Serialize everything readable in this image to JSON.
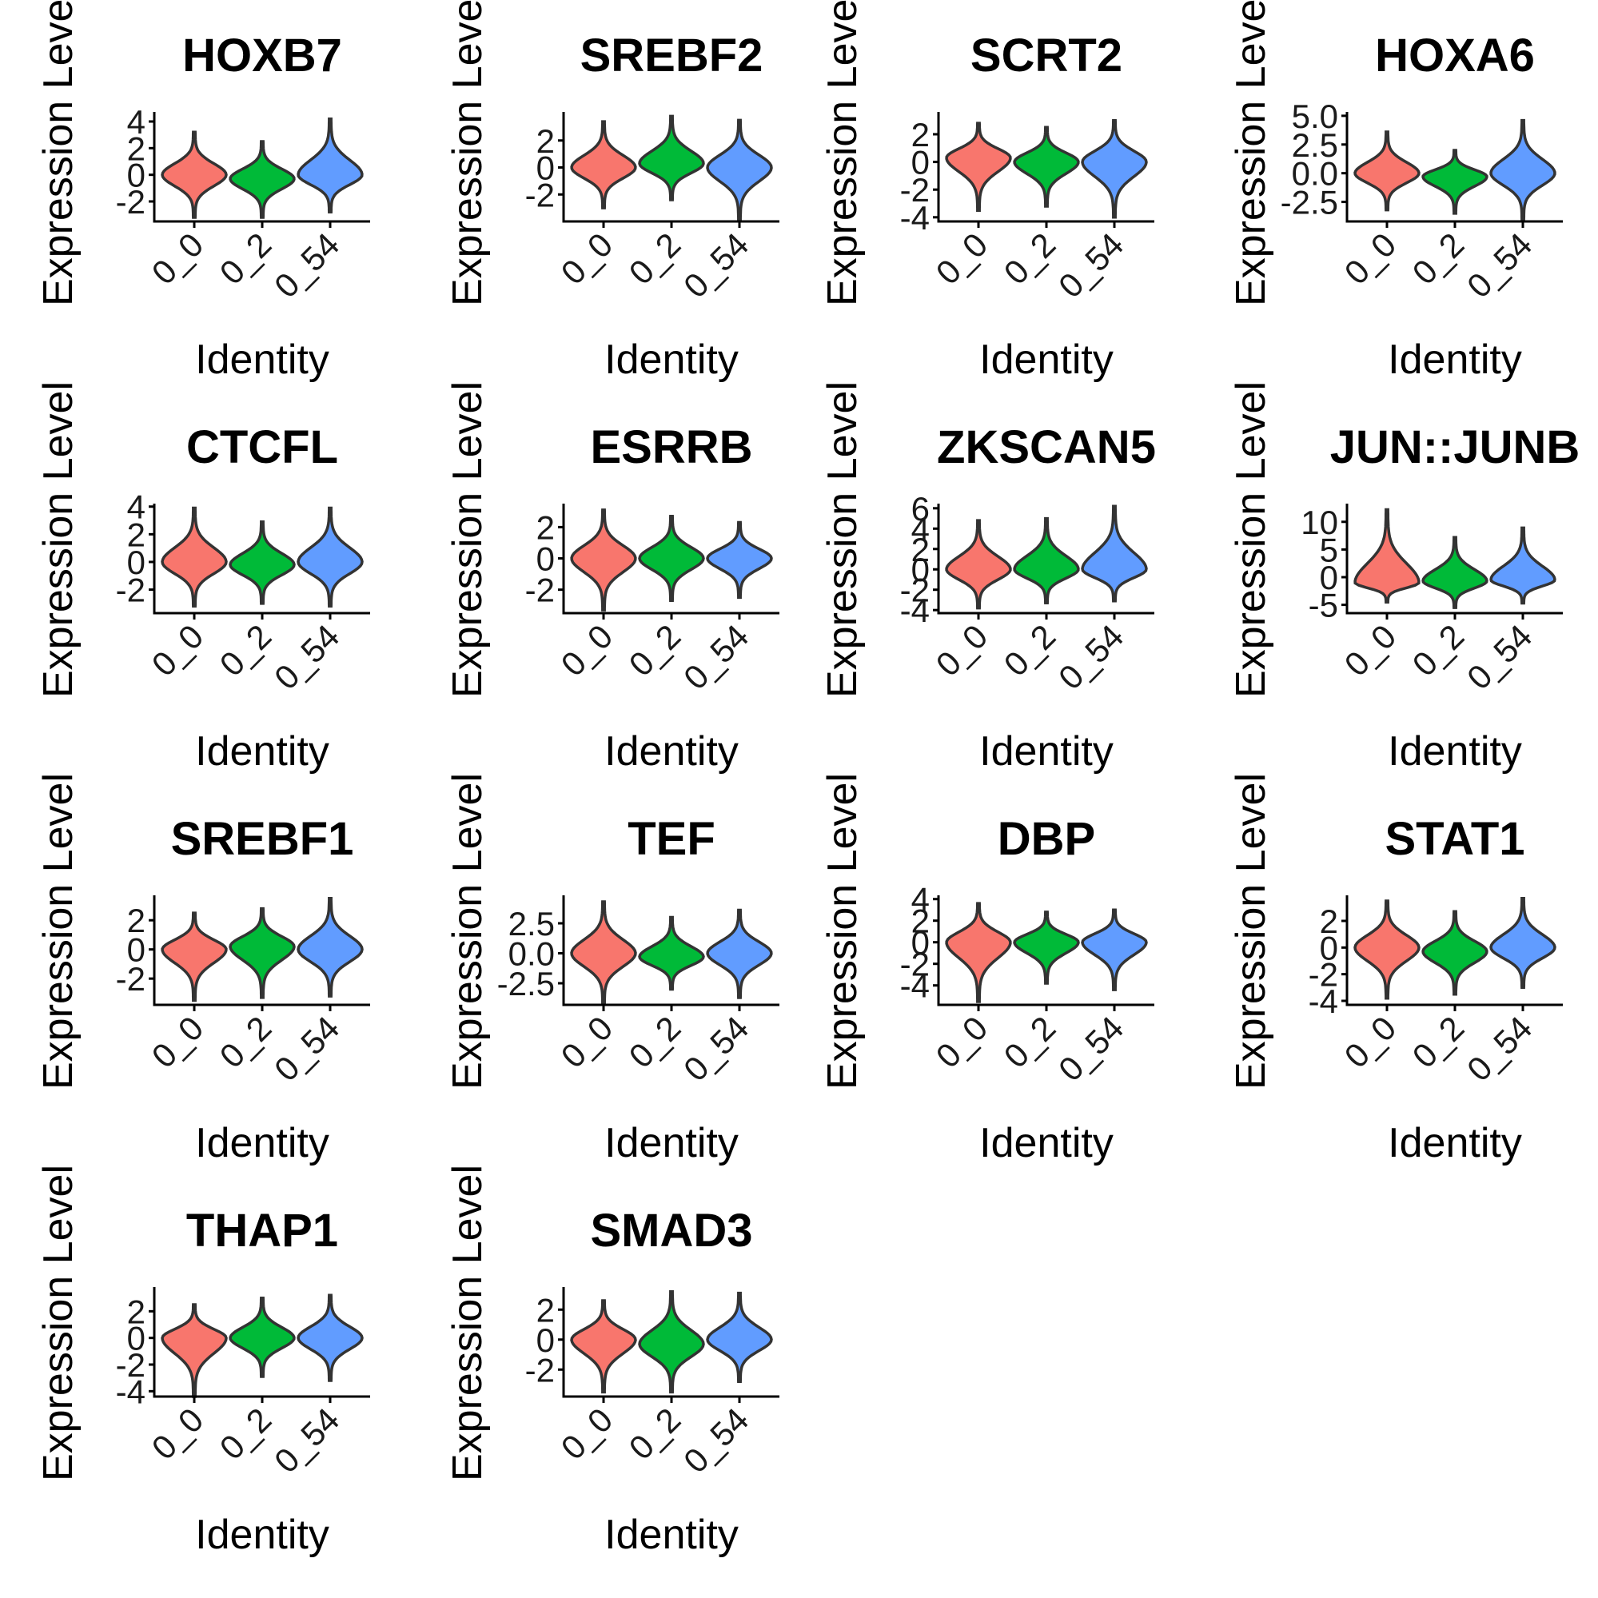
{
  "chart_data": [
    {
      "type": "violin",
      "title": "HOXB7",
      "xlabel": "Identity",
      "ylabel": "Expression Level",
      "categories": [
        "0_0",
        "0_2",
        "0_54"
      ],
      "yticks": [
        4,
        2,
        0,
        -2
      ],
      "ylim": [
        -3.5,
        4.6
      ],
      "series": [
        {
          "name": "0_0",
          "min": -3.2,
          "max": 3.2,
          "median": 0
        },
        {
          "name": "0_2",
          "min": -3.2,
          "max": 2.5,
          "median": -0.3
        },
        {
          "name": "0_54",
          "min": -2.8,
          "max": 4.2,
          "median": 0
        }
      ]
    },
    {
      "type": "violin",
      "title": "SREBF2",
      "xlabel": "Identity",
      "ylabel": "Expression Level",
      "categories": [
        "0_0",
        "0_2",
        "0_54"
      ],
      "yticks": [
        2,
        0,
        -2
      ],
      "ylim": [
        -4,
        4
      ],
      "series": [
        {
          "name": "0_0",
          "min": -3.0,
          "max": 3.4,
          "median": 0
        },
        {
          "name": "0_2",
          "min": -2.4,
          "max": 3.8,
          "median": 0.3
        },
        {
          "name": "0_54",
          "min": -3.9,
          "max": 3.5,
          "median": 0
        }
      ]
    },
    {
      "type": "violin",
      "title": "SCRT2",
      "xlabel": "Identity",
      "ylabel": "Expression Level",
      "categories": [
        "0_0",
        "0_2",
        "0_54"
      ],
      "yticks": [
        2,
        0,
        -2,
        -4
      ],
      "ylim": [
        -4.3,
        3.5
      ],
      "series": [
        {
          "name": "0_0",
          "min": -3.5,
          "max": 2.8,
          "median": 0.3
        },
        {
          "name": "0_2",
          "min": -3.2,
          "max": 2.5,
          "median": 0
        },
        {
          "name": "0_54",
          "min": -4.0,
          "max": 3.0,
          "median": 0
        }
      ]
    },
    {
      "type": "violin",
      "title": "HOXA6",
      "xlabel": "Identity",
      "ylabel": "Expression Level",
      "categories": [
        "0_0",
        "0_2",
        "0_54"
      ],
      "yticks": [
        5.0,
        2.5,
        0.0,
        -2.5
      ],
      "ylim": [
        -4.2,
        5.2
      ],
      "series": [
        {
          "name": "0_0",
          "min": -3.2,
          "max": 3.6,
          "median": 0
        },
        {
          "name": "0_2",
          "min": -3.5,
          "max": 2.0,
          "median": -0.3
        },
        {
          "name": "0_54",
          "min": -4.0,
          "max": 4.6,
          "median": 0
        }
      ]
    },
    {
      "type": "violin",
      "title": "CTCFL",
      "xlabel": "Identity",
      "ylabel": "Expression Level",
      "categories": [
        "0_0",
        "0_2",
        "0_54"
      ],
      "yticks": [
        4,
        2,
        0,
        -2
      ],
      "ylim": [
        -3.7,
        4.1
      ],
      "series": [
        {
          "name": "0_0",
          "min": -3.2,
          "max": 3.9,
          "median": 0
        },
        {
          "name": "0_2",
          "min": -3.0,
          "max": 2.9,
          "median": -0.2
        },
        {
          "name": "0_54",
          "min": -3.2,
          "max": 3.9,
          "median": 0
        }
      ]
    },
    {
      "type": "violin",
      "title": "ESRRB",
      "xlabel": "Identity",
      "ylabel": "Expression Level",
      "categories": [
        "0_0",
        "0_2",
        "0_54"
      ],
      "yticks": [
        2,
        0,
        -2
      ],
      "ylim": [
        -3.5,
        3.4
      ],
      "series": [
        {
          "name": "0_0",
          "min": -3.3,
          "max": 3.1,
          "median": 0
        },
        {
          "name": "0_2",
          "min": -2.7,
          "max": 2.7,
          "median": 0
        },
        {
          "name": "0_54",
          "min": -2.5,
          "max": 2.3,
          "median": 0
        }
      ]
    },
    {
      "type": "violin",
      "title": "ZKSCAN5",
      "xlabel": "Identity",
      "ylabel": "Expression Level",
      "categories": [
        "0_0",
        "0_2",
        "0_54"
      ],
      "yticks": [
        6,
        4,
        2,
        0,
        -2,
        -4
      ],
      "ylim": [
        -4.3,
        6.3
      ],
      "series": [
        {
          "name": "0_0",
          "min": -3.8,
          "max": 4.8,
          "median": 0
        },
        {
          "name": "0_2",
          "min": -3.3,
          "max": 5.0,
          "median": 0
        },
        {
          "name": "0_54",
          "min": -3.1,
          "max": 6.2,
          "median": 0
        }
      ]
    },
    {
      "type": "violin",
      "title": "JUN::JUNB",
      "xlabel": "Identity",
      "ylabel": "Expression Level",
      "categories": [
        "0_0",
        "0_2",
        "0_54"
      ],
      "yticks": [
        10,
        5,
        0,
        -5
      ],
      "ylim": [
        -6.5,
        13
      ],
      "series": [
        {
          "name": "0_0",
          "min": -4.5,
          "max": 12.2,
          "median": -1
        },
        {
          "name": "0_2",
          "min": -5.5,
          "max": 7.2,
          "median": -0.7
        },
        {
          "name": "0_54",
          "min": -4.7,
          "max": 8.9,
          "median": -0.5
        }
      ]
    },
    {
      "type": "violin",
      "title": "SREBF1",
      "xlabel": "Identity",
      "ylabel": "Expression Level",
      "categories": [
        "0_0",
        "0_2",
        "0_54"
      ],
      "yticks": [
        2,
        0,
        -2
      ],
      "ylim": [
        -3.8,
        3.6
      ],
      "series": [
        {
          "name": "0_0",
          "min": -3.5,
          "max": 2.5,
          "median": 0
        },
        {
          "name": "0_2",
          "min": -3.3,
          "max": 2.8,
          "median": 0.2
        },
        {
          "name": "0_54",
          "min": -3.2,
          "max": 3.5,
          "median": 0
        }
      ]
    },
    {
      "type": "violin",
      "title": "TEF",
      "xlabel": "Identity",
      "ylabel": "Expression Level",
      "categories": [
        "0_0",
        "0_2",
        "0_54"
      ],
      "yticks": [
        2.5,
        0.0,
        -2.5
      ],
      "ylim": [
        -4.3,
        4.7
      ],
      "series": [
        {
          "name": "0_0",
          "min": -4.2,
          "max": 4.3,
          "median": 0
        },
        {
          "name": "0_2",
          "min": -3.0,
          "max": 3.0,
          "median": -0.3
        },
        {
          "name": "0_54",
          "min": -3.7,
          "max": 3.6,
          "median": 0
        }
      ]
    },
    {
      "type": "violin",
      "title": "DBP",
      "xlabel": "Identity",
      "ylabel": "Expression Level",
      "categories": [
        "0_0",
        "0_2",
        "0_54"
      ],
      "yticks": [
        4,
        2,
        0,
        -2,
        -4
      ],
      "ylim": [
        -5.8,
        4.2
      ],
      "series": [
        {
          "name": "0_0",
          "min": -5.5,
          "max": 3.6,
          "median": 0
        },
        {
          "name": "0_2",
          "min": -3.8,
          "max": 2.8,
          "median": 0
        },
        {
          "name": "0_54",
          "min": -4.4,
          "max": 3.0,
          "median": 0
        }
      ]
    },
    {
      "type": "violin",
      "title": "STAT1",
      "xlabel": "Identity",
      "ylabel": "Expression Level",
      "categories": [
        "0_0",
        "0_2",
        "0_54"
      ],
      "yticks": [
        2,
        0,
        -2,
        -4
      ],
      "ylim": [
        -4.3,
        3.8
      ],
      "series": [
        {
          "name": "0_0",
          "min": -3.8,
          "max": 3.5,
          "median": 0
        },
        {
          "name": "0_2",
          "min": -3.5,
          "max": 2.7,
          "median": -0.3
        },
        {
          "name": "0_54",
          "min": -3.0,
          "max": 3.7,
          "median": 0
        }
      ]
    },
    {
      "type": "violin",
      "title": "THAP1",
      "xlabel": "Identity",
      "ylabel": "Expression Level",
      "categories": [
        "0_0",
        "0_2",
        "0_54"
      ],
      "yticks": [
        2,
        0,
        -2,
        -4
      ],
      "ylim": [
        -4.4,
        3.7
      ],
      "series": [
        {
          "name": "0_0",
          "min": -4.4,
          "max": 2.5,
          "median": 0
        },
        {
          "name": "0_2",
          "min": -2.9,
          "max": 3.0,
          "median": 0
        },
        {
          "name": "0_54",
          "min": -3.2,
          "max": 3.2,
          "median": 0
        }
      ]
    },
    {
      "type": "violin",
      "title": "SMAD3",
      "xlabel": "Identity",
      "ylabel": "Expression Level",
      "categories": [
        "0_0",
        "0_2",
        "0_54"
      ],
      "yticks": [
        2,
        0,
        -2
      ],
      "ylim": [
        -3.8,
        3.4
      ],
      "series": [
        {
          "name": "0_0",
          "min": -3.5,
          "max": 2.6,
          "median": 0
        },
        {
          "name": "0_2",
          "min": -3.5,
          "max": 3.2,
          "median": -0.3
        },
        {
          "name": "0_54",
          "min": -2.8,
          "max": 3.1,
          "median": 0
        }
      ]
    }
  ],
  "colors": {
    "0_0": "#F8766D",
    "0_2": "#00BA38",
    "0_54": "#619CFF",
    "outline": "#333333"
  }
}
